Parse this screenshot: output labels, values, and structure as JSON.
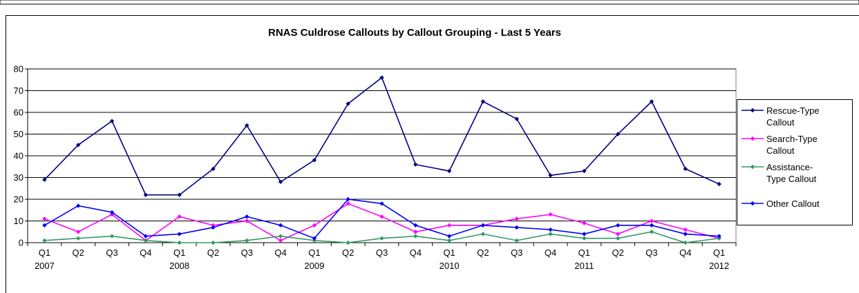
{
  "chart_data": {
    "type": "line",
    "title": "RNAS Culdrose Callouts by Callout Grouping - Last 5 Years",
    "categories": [
      "Q1",
      "Q2",
      "Q3",
      "Q4",
      "Q1",
      "Q2",
      "Q3",
      "Q4",
      "Q1",
      "Q2",
      "Q3",
      "Q4",
      "Q1",
      "Q2",
      "Q3",
      "Q4",
      "Q1",
      "Q2",
      "Q3",
      "Q4",
      "Q1"
    ],
    "years": [
      "2007",
      "",
      "",
      "",
      "2008",
      "",
      "",
      "",
      "2009",
      "",
      "",
      "",
      "2010",
      "",
      "",
      "",
      "2011",
      "",
      "",
      "",
      "2012"
    ],
    "ylim": [
      0,
      80
    ],
    "yticks": [
      0,
      10,
      20,
      30,
      40,
      50,
      60,
      70,
      80
    ],
    "grid": true,
    "legend_position": "right",
    "series": [
      {
        "name": "Rescue-Type Callout",
        "name_lines": [
          "Rescue-Type",
          "Callout"
        ],
        "color": "#000080",
        "values": [
          29,
          45,
          56,
          22,
          22,
          34,
          54,
          28,
          38,
          64,
          76,
          36,
          33,
          65,
          57,
          31,
          33,
          50,
          65,
          34,
          27
        ]
      },
      {
        "name": "Search-Type Callout",
        "name_lines": [
          "Search-Type",
          "Callout"
        ],
        "color": "#ff00ff",
        "values": [
          11,
          5,
          13,
          1,
          12,
          8,
          10,
          1,
          8,
          18,
          12,
          5,
          8,
          8,
          11,
          13,
          9,
          4,
          10,
          6,
          2
        ]
      },
      {
        "name": "Assistance-Type Callout",
        "name_lines": [
          "Assistance-",
          "Type Callout"
        ],
        "color": "#339966",
        "values": [
          1,
          2,
          3,
          1,
          0,
          0,
          1,
          3,
          1,
          0,
          2,
          3,
          1,
          4,
          1,
          4,
          2,
          2,
          5,
          0,
          2
        ]
      },
      {
        "name": "Other Callout",
        "name_lines": [
          "Other Callout"
        ],
        "color": "#0000ff",
        "values": [
          8,
          17,
          14,
          3,
          4,
          7,
          12,
          8,
          2,
          20,
          18,
          8,
          3,
          8,
          7,
          6,
          4,
          8,
          8,
          4,
          3
        ]
      }
    ]
  }
}
